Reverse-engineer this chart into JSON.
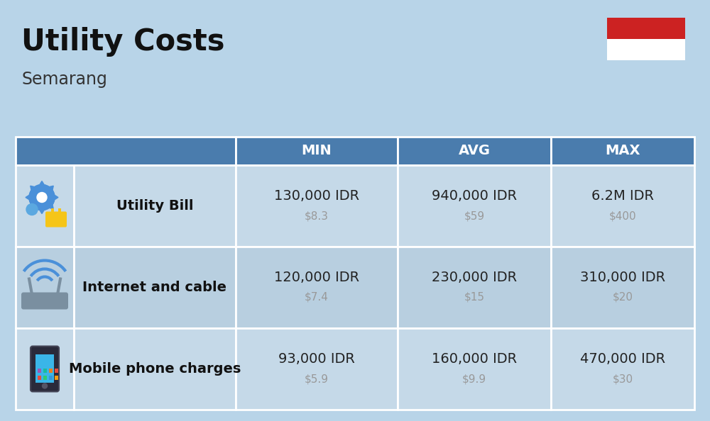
{
  "title": "Utility Costs",
  "subtitle": "Semarang",
  "background_color": "#b8d4e8",
  "header_bg_color": "#4a7cad",
  "header_text_color": "#ffffff",
  "row_bg_color_odd": "#c5d9e8",
  "row_bg_color_even": "#b8cfe0",
  "border_color": "#ffffff",
  "col_headers": [
    "MIN",
    "AVG",
    "MAX"
  ],
  "rows": [
    {
      "label": "Utility Bill",
      "icon": "utility",
      "min_idr": "130,000 IDR",
      "min_usd": "$8.3",
      "avg_idr": "940,000 IDR",
      "avg_usd": "$59",
      "max_idr": "6.2M IDR",
      "max_usd": "$400"
    },
    {
      "label": "Internet and cable",
      "icon": "internet",
      "min_idr": "120,000 IDR",
      "min_usd": "$7.4",
      "avg_idr": "230,000 IDR",
      "avg_usd": "$15",
      "max_idr": "310,000 IDR",
      "max_usd": "$20"
    },
    {
      "label": "Mobile phone charges",
      "icon": "mobile",
      "min_idr": "93,000 IDR",
      "min_usd": "$5.9",
      "avg_idr": "160,000 IDR",
      "avg_usd": "$9.9",
      "max_idr": "470,000 IDR",
      "max_usd": "$30"
    }
  ],
  "flag_red": "#cc2222",
  "flag_white": "#ffffff",
  "idr_fontsize": 14,
  "usd_fontsize": 11,
  "usd_color": "#999999",
  "label_fontsize": 14,
  "header_fontsize": 14,
  "title_fontsize": 30,
  "subtitle_fontsize": 17,
  "title_color": "#111111",
  "subtitle_color": "#333333",
  "label_color": "#111111",
  "idr_color": "#222222"
}
